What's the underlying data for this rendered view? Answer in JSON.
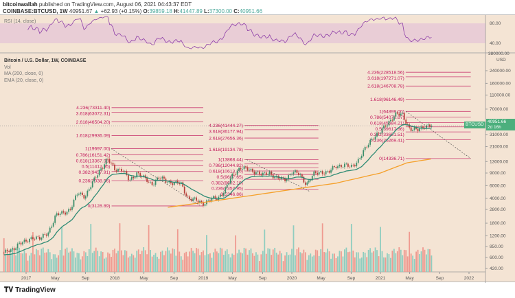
{
  "header": {
    "author": "bitcoinwallah",
    "published": "published on TradingView.com, August 06, 2021 04:43:37 EDT",
    "symbol": "COINBASE:BTCUSD, 1W",
    "last": "40951.67",
    "arrow": "▲",
    "change": "+62.93 (+0.15%)",
    "o_label": "O:",
    "o": "39859.18",
    "h_label": "H:",
    "h": "41447.89",
    "l_label": "L:",
    "l": "37300.00",
    "c_label": "C:",
    "c": "40951.66"
  },
  "rsi": {
    "label": "RSI (14, close)",
    "axis": [
      "80.00",
      "40.00"
    ]
  },
  "legend": {
    "title": "Bitcoin / U.S. Dollar, 1W, COINBASE",
    "vol": "Vol",
    "ma": "MA (200, close, 0)",
    "ema": "EMA (20, close, 0)"
  },
  "price_tag": {
    "symbol": "BTCUSD",
    "price": "40951.66",
    "countdown": "2d 16h"
  },
  "footer": {
    "brand": "TradingView"
  },
  "colors": {
    "bg": "#f4e4d4",
    "up": "#3d8f6c",
    "down": "#b5403a",
    "vol_up": "#8fcdbf",
    "vol_down": "#ef9a90",
    "ema": "#2e8b74",
    "ma": "#f5a02a",
    "fib": "#c2185b"
  },
  "chart_data": {
    "type": "candlestick",
    "title": "Bitcoin / U.S. Dollar, 1W, COINBASE",
    "scale": "log",
    "currency": "USD",
    "y_ticks": [
      240000,
      160000,
      110000,
      70000,
      31000,
      21000,
      13000,
      9000,
      6000,
      4000,
      2800,
      1800,
      1200,
      850,
      600,
      420
    ],
    "y_top_tick": "380000.00",
    "x_ticks": [
      {
        "t": 2017.0,
        "l": "2017"
      },
      {
        "t": 2017.33,
        "l": "May"
      },
      {
        "t": 2017.67,
        "l": "Sep"
      },
      {
        "t": 2018.0,
        "l": "2018"
      },
      {
        "t": 2018.33,
        "l": "May"
      },
      {
        "t": 2018.67,
        "l": "Sep"
      },
      {
        "t": 2019.0,
        "l": "2019"
      },
      {
        "t": 2019.33,
        "l": "May"
      },
      {
        "t": 2019.67,
        "l": "Sep"
      },
      {
        "t": 2020.0,
        "l": "2020"
      },
      {
        "t": 2020.33,
        "l": "May"
      },
      {
        "t": 2020.67,
        "l": "Sep"
      },
      {
        "t": 2021.0,
        "l": "2021"
      },
      {
        "t": 2021.33,
        "l": "May"
      },
      {
        "t": 2021.67,
        "l": "Sep"
      },
      {
        "t": 2022.0,
        "l": "2022"
      }
    ],
    "monthly_close_start": 2016.75,
    "monthly_close": [
      700,
      740,
      960,
      970,
      1190,
      1080,
      1350,
      2300,
      2480,
      2870,
      4700,
      4340,
      6470,
      10000,
      14000,
      10200,
      10300,
      6900,
      9200,
      7500,
      6400,
      7700,
      7000,
      6600,
      6300,
      4000,
      3700,
      3450,
      3800,
      4100,
      5300,
      8500,
      10800,
      10000,
      9600,
      8300,
      9200,
      7550,
      7200,
      9350,
      8600,
      6400,
      8600,
      9450,
      9140,
      11350,
      11650,
      10780,
      13800,
      19700,
      29000,
      33100,
      45200,
      58800,
      57700,
      37300,
      35000,
      41500,
      40951.66
    ],
    "ma200": [
      [
        2018.6,
        3000
      ],
      [
        2019.0,
        3500
      ],
      [
        2019.5,
        4300
      ],
      [
        2020.0,
        5300
      ],
      [
        2020.5,
        6500
      ],
      [
        2021.0,
        9000
      ],
      [
        2021.3,
        12500
      ],
      [
        2021.6,
        14300
      ]
    ],
    "fib_sets": [
      {
        "from": 2017.95,
        "to": 2019.0,
        "levels": [
          [
            "4.236(73311.40)",
            73311.4
          ],
          [
            "3.618(63072.31)",
            63072.31
          ],
          [
            "2.618(46504.20)",
            46504.2
          ],
          [
            "1.618(29936.09)",
            29936.09
          ],
          [
            "1(19697.00)",
            19697.0
          ],
          [
            "0.786(16151.42)",
            16151.42
          ],
          [
            "0.618(13367.98)",
            13367.98
          ],
          [
            "0.5(11412.95)",
            11412.95
          ],
          [
            "0.382(9457.91)",
            9457.91
          ],
          [
            "0.236(7038.96)",
            7038.96
          ],
          [
            "0(3128.89)",
            3128.89
          ]
        ]
      },
      {
        "from": 2019.45,
        "to": 2020.3,
        "levels": [
          [
            "4.236(41444.27)",
            41444.27
          ],
          [
            "3.618(36177.94)",
            36177.94
          ],
          [
            "2.618(27656.36)",
            27656.36
          ],
          [
            "1.618(19134.78)",
            19134.78
          ],
          [
            "1(13868.44)",
            13868.44
          ],
          [
            "0.786(12044.82)",
            12044.82
          ],
          [
            "0.618(10613.20)",
            10613.2
          ],
          [
            "0.5(9607.65)",
            9607.65
          ],
          [
            "0.382(8602.10)",
            8602.1
          ],
          [
            "0.236(7357.95)",
            7357.95
          ],
          [
            "0(5346.86)",
            5346.86
          ]
        ]
      },
      {
        "from": 2021.27,
        "to": 2022.02,
        "levels": [
          [
            "4.236(228518.56)",
            228518.56
          ],
          [
            "3.618(197271.07)",
            197271.07
          ],
          [
            "2.618(146708.78)",
            146708.78
          ],
          [
            "1.618(96146.49)",
            96146.49
          ],
          [
            "1(64899.00)",
            64899.0
          ],
          [
            "0.786(54078.67)",
            54078.67
          ],
          [
            "0.618(45584.21)",
            45584.21
          ],
          [
            "0.5(39617.86)",
            39617.86
          ],
          [
            "0.382(33651.51)",
            33651.51
          ],
          [
            "0.236(26269.41)",
            26269.41
          ],
          [
            "0(14336.71)",
            14336.71
          ]
        ]
      }
    ],
    "trendlines": [
      [
        [
          2017.96,
          19697
        ],
        [
          2018.96,
          3200
        ]
      ],
      [
        [
          2019.49,
          13868
        ],
        [
          2020.2,
          5000
        ]
      ],
      [
        [
          2021.29,
          64899
        ],
        [
          2022.02,
          14336
        ]
      ]
    ]
  }
}
